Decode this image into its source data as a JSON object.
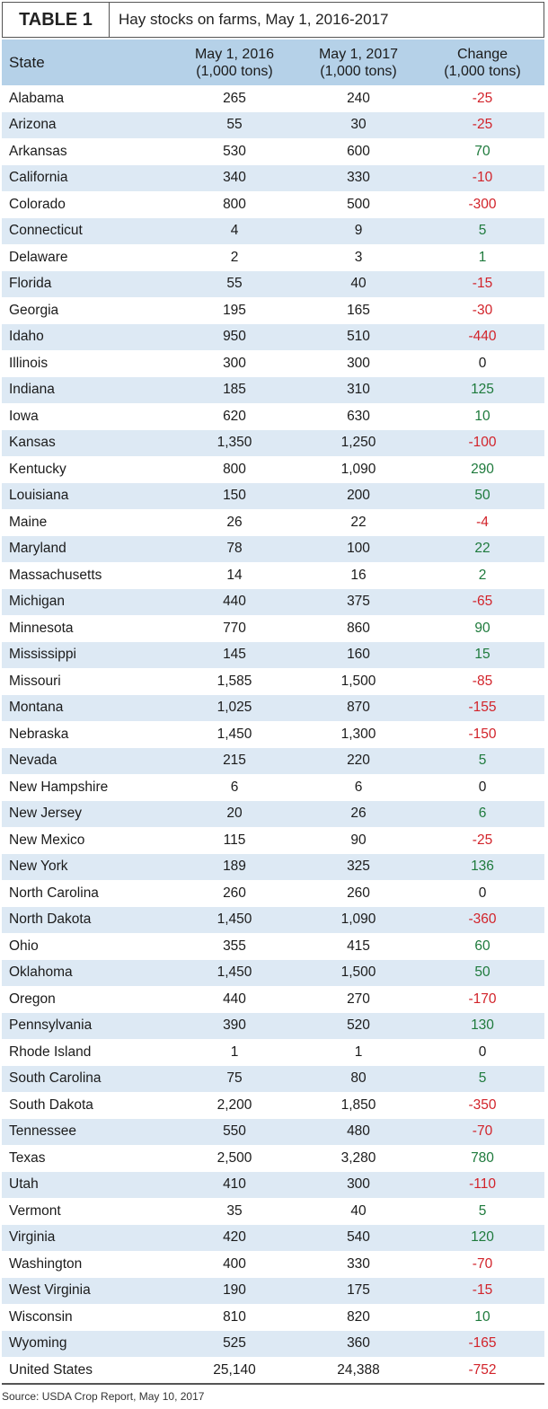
{
  "title": {
    "tag": "TABLE 1",
    "text": "Hay stocks on farms, May 1, 2016-2017"
  },
  "headers": {
    "state": "State",
    "y2016_line1": "May 1, 2016",
    "y2016_line2": "(1,000 tons)",
    "y2017_line1": "May 1, 2017",
    "y2017_line2": "(1,000 tons)",
    "change_line1": "Change",
    "change_line2": "(1,000 tons)"
  },
  "colors": {
    "header_bg": "#b5d1e8",
    "stripe_bg": "#dde9f4",
    "negative": "#d2232a",
    "positive": "#1e7a3c"
  },
  "rows": [
    {
      "state": "Alabama",
      "y2016": "265",
      "y2017": "240",
      "change": "-25"
    },
    {
      "state": "Arizona",
      "y2016": "55",
      "y2017": "30",
      "change": "-25"
    },
    {
      "state": "Arkansas",
      "y2016": "530",
      "y2017": "600",
      "change": "70"
    },
    {
      "state": "California",
      "y2016": "340",
      "y2017": "330",
      "change": "-10"
    },
    {
      "state": "Colorado",
      "y2016": "800",
      "y2017": "500",
      "change": "-300"
    },
    {
      "state": "Connecticut",
      "y2016": "4",
      "y2017": "9",
      "change": "5"
    },
    {
      "state": "Delaware",
      "y2016": "2",
      "y2017": "3",
      "change": "1"
    },
    {
      "state": "Florida",
      "y2016": "55",
      "y2017": "40",
      "change": "-15"
    },
    {
      "state": "Georgia",
      "y2016": "195",
      "y2017": "165",
      "change": "-30"
    },
    {
      "state": "Idaho",
      "y2016": "950",
      "y2017": "510",
      "change": "-440"
    },
    {
      "state": "Illinois",
      "y2016": "300",
      "y2017": "300",
      "change": "0"
    },
    {
      "state": "Indiana",
      "y2016": "185",
      "y2017": "310",
      "change": "125"
    },
    {
      "state": "Iowa",
      "y2016": "620",
      "y2017": "630",
      "change": "10"
    },
    {
      "state": "Kansas",
      "y2016": "1,350",
      "y2017": "1,250",
      "change": "-100"
    },
    {
      "state": "Kentucky",
      "y2016": "800",
      "y2017": "1,090",
      "change": "290"
    },
    {
      "state": "Louisiana",
      "y2016": "150",
      "y2017": "200",
      "change": "50"
    },
    {
      "state": "Maine",
      "y2016": "26",
      "y2017": "22",
      "change": "-4"
    },
    {
      "state": "Maryland",
      "y2016": "78",
      "y2017": "100",
      "change": "22"
    },
    {
      "state": "Massachusetts",
      "y2016": "14",
      "y2017": "16",
      "change": "2"
    },
    {
      "state": "Michigan",
      "y2016": "440",
      "y2017": "375",
      "change": "-65"
    },
    {
      "state": "Minnesota",
      "y2016": "770",
      "y2017": "860",
      "change": "90"
    },
    {
      "state": "Mississippi",
      "y2016": "145",
      "y2017": "160",
      "change": "15"
    },
    {
      "state": "Missouri",
      "y2016": "1,585",
      "y2017": "1,500",
      "change": "-85"
    },
    {
      "state": "Montana",
      "y2016": "1,025",
      "y2017": "870",
      "change": "-155"
    },
    {
      "state": "Nebraska",
      "y2016": "1,450",
      "y2017": "1,300",
      "change": "-150"
    },
    {
      "state": "Nevada",
      "y2016": "215",
      "y2017": "220",
      "change": "5"
    },
    {
      "state": "New Hampshire",
      "y2016": "6",
      "y2017": "6",
      "change": "0"
    },
    {
      "state": "New Jersey",
      "y2016": "20",
      "y2017": "26",
      "change": "6"
    },
    {
      "state": "New Mexico",
      "y2016": "115",
      "y2017": "90",
      "change": "-25"
    },
    {
      "state": "New York",
      "y2016": "189",
      "y2017": "325",
      "change": "136"
    },
    {
      "state": "North Carolina",
      "y2016": "260",
      "y2017": "260",
      "change": "0"
    },
    {
      "state": "North Dakota",
      "y2016": "1,450",
      "y2017": "1,090",
      "change": "-360"
    },
    {
      "state": "Ohio",
      "y2016": "355",
      "y2017": "415",
      "change": "60"
    },
    {
      "state": "Oklahoma",
      "y2016": "1,450",
      "y2017": "1,500",
      "change": "50"
    },
    {
      "state": "Oregon",
      "y2016": "440",
      "y2017": "270",
      "change": "-170"
    },
    {
      "state": "Pennsylvania",
      "y2016": "390",
      "y2017": "520",
      "change": "130"
    },
    {
      "state": "Rhode Island",
      "y2016": "1",
      "y2017": "1",
      "change": "0"
    },
    {
      "state": "South Carolina",
      "y2016": "75",
      "y2017": "80",
      "change": "5"
    },
    {
      "state": "South Dakota",
      "y2016": "2,200",
      "y2017": "1,850",
      "change": "-350"
    },
    {
      "state": "Tennessee",
      "y2016": "550",
      "y2017": "480",
      "change": "-70"
    },
    {
      "state": "Texas",
      "y2016": "2,500",
      "y2017": "3,280",
      "change": "780"
    },
    {
      "state": "Utah",
      "y2016": "410",
      "y2017": "300",
      "change": "-110"
    },
    {
      "state": "Vermont",
      "y2016": "35",
      "y2017": "40",
      "change": "5"
    },
    {
      "state": "Virginia",
      "y2016": "420",
      "y2017": "540",
      "change": "120"
    },
    {
      "state": "Washington",
      "y2016": "400",
      "y2017": "330",
      "change": "-70"
    },
    {
      "state": "West Virginia",
      "y2016": "190",
      "y2017": "175",
      "change": "-15"
    },
    {
      "state": "Wisconsin",
      "y2016": "810",
      "y2017": "820",
      "change": "10"
    },
    {
      "state": "Wyoming",
      "y2016": "525",
      "y2017": "360",
      "change": "-165"
    },
    {
      "state": "United States",
      "y2016": "25,140",
      "y2017": "24,388",
      "change": "-752"
    }
  ],
  "source": "Source: USDA Crop Report, May 10, 2017"
}
